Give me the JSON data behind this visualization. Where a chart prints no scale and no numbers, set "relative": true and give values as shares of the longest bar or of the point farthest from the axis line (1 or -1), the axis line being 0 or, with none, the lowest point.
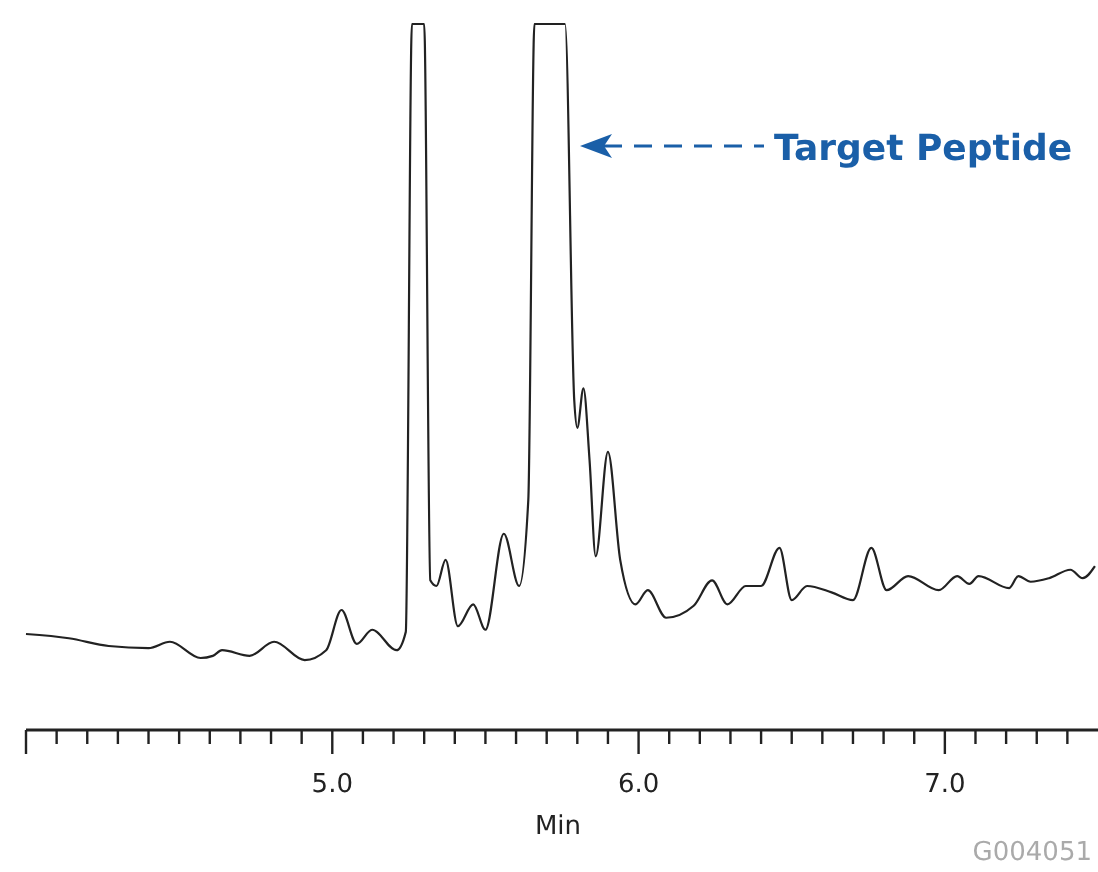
{
  "chart_data": {
    "type": "line",
    "relative": true,
    "xlabel": "Min",
    "color": "#222222",
    "marker": "none",
    "line_style": "solid",
    "grid": false,
    "xlim": [
      4.0,
      7.5
    ],
    "xticks": [
      {
        "value": 4.0,
        "label": null
      },
      {
        "value": 4.1,
        "label": null
      },
      {
        "value": 4.2,
        "label": null
      },
      {
        "value": 4.3,
        "label": null
      },
      {
        "value": 4.4,
        "label": null
      },
      {
        "value": 4.5,
        "label": null
      },
      {
        "value": 4.6,
        "label": null
      },
      {
        "value": 4.7,
        "label": null
      },
      {
        "value": 4.8,
        "label": null
      },
      {
        "value": 4.9,
        "label": null
      },
      {
        "value": 5.0,
        "label": "5.0"
      },
      {
        "value": 5.1,
        "label": null
      },
      {
        "value": 5.2,
        "label": null
      },
      {
        "value": 5.3,
        "label": null
      },
      {
        "value": 5.4,
        "label": null
      },
      {
        "value": 5.5,
        "label": null
      },
      {
        "value": 5.6,
        "label": null
      },
      {
        "value": 5.7,
        "label": null
      },
      {
        "value": 5.8,
        "label": null
      },
      {
        "value": 5.9,
        "label": null
      },
      {
        "value": 6.0,
        "label": "6.0"
      },
      {
        "value": 6.1,
        "label": null
      },
      {
        "value": 6.2,
        "label": null
      },
      {
        "value": 6.3,
        "label": null
      },
      {
        "value": 6.4,
        "label": null
      },
      {
        "value": 6.5,
        "label": null
      },
      {
        "value": 6.6,
        "label": null
      },
      {
        "value": 6.7,
        "label": null
      },
      {
        "value": 6.8,
        "label": null
      },
      {
        "value": 6.9,
        "label": null
      },
      {
        "value": 7.0,
        "label": "7.0"
      },
      {
        "value": 7.1,
        "label": null
      },
      {
        "value": 7.2,
        "label": null
      },
      {
        "value": 7.3,
        "label": null
      },
      {
        "value": 7.4,
        "label": null
      }
    ],
    "x": [
      4.0,
      4.14,
      4.27,
      4.4,
      4.47,
      4.57,
      4.61,
      4.64,
      4.73,
      4.81,
      4.91,
      4.98,
      5.03,
      5.08,
      5.13,
      5.21,
      5.24,
      5.26,
      5.3,
      5.32,
      5.34,
      5.37,
      5.41,
      5.46,
      5.5,
      5.56,
      5.61,
      5.64,
      5.66,
      5.76,
      5.79,
      5.8,
      5.82,
      5.84,
      5.86,
      5.9,
      5.94,
      5.99,
      6.03,
      6.09,
      6.18,
      6.24,
      6.29,
      6.35,
      6.4,
      6.46,
      6.5,
      6.55,
      6.63,
      6.7,
      6.76,
      6.81,
      6.88,
      6.98,
      7.04,
      7.08,
      7.11,
      7.21,
      7.24,
      7.28,
      7.34,
      7.41,
      7.45,
      7.49
    ],
    "values": [
      0.136,
      0.13,
      0.119,
      0.116,
      0.125,
      0.102,
      0.105,
      0.113,
      0.105,
      0.125,
      0.099,
      0.113,
      0.17,
      0.122,
      0.142,
      0.113,
      0.139,
      1,
      1,
      0.212,
      0.204,
      0.241,
      0.147,
      0.178,
      0.142,
      0.278,
      0.204,
      0.326,
      1,
      1,
      0.467,
      0.428,
      0.484,
      0.382,
      0.246,
      0.394,
      0.241,
      0.178,
      0.198,
      0.159,
      0.176,
      0.212,
      0.178,
      0.204,
      0.204,
      0.258,
      0.184,
      0.204,
      0.195,
      0.184,
      0.258,
      0.198,
      0.218,
      0.198,
      0.218,
      0.207,
      0.218,
      0.201,
      0.218,
      0.21,
      0.215,
      0.227,
      0.215,
      0.232
    ],
    "annotations": [
      "Target Peptide",
      "G004051"
    ]
  }
}
